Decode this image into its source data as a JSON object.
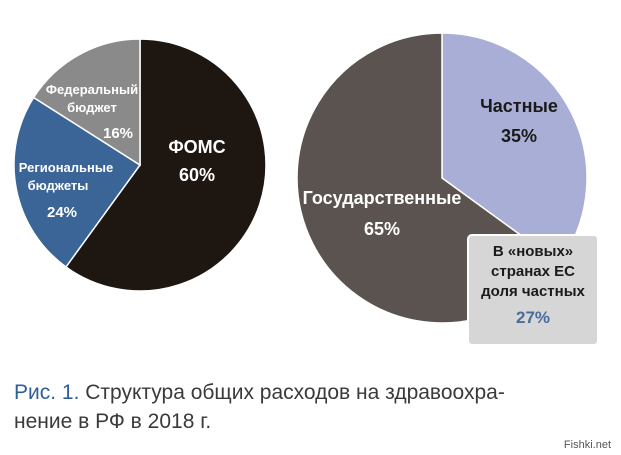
{
  "colors": {
    "foms": "#1e1611",
    "federal": "#8a8a8a",
    "regional": "#3a6596",
    "state": "#5a5350",
    "private": "#a8aed6",
    "callout_bg": "#d6d6d6",
    "callout_value": "#4a6c9c",
    "caption_accent": "#2f5f95"
  },
  "chart_data": [
    {
      "type": "pie",
      "slices": [
        {
          "name": "ФОМС",
          "value": 60
        },
        {
          "name": "Федеральный бюджет",
          "value": 16
        },
        {
          "name": "Региональные бюджеты",
          "value": 24
        }
      ]
    },
    {
      "type": "pie",
      "slices": [
        {
          "name": "Частные",
          "value": 35
        },
        {
          "name": "Государственные",
          "value": 65
        }
      ]
    }
  ],
  "labels": {
    "foms_name": "ФОМС",
    "foms_pct": "60%",
    "federal_line1": "Федеральный",
    "federal_line2": "бюджет",
    "federal_pct": "16%",
    "regional_line1": "Региональные",
    "regional_line2": "бюджеты",
    "regional_pct": "24%",
    "private_name": "Частные",
    "private_pct": "35%",
    "state_name": "Государственные",
    "state_pct": "65%"
  },
  "callout": {
    "line1": "В «новых»",
    "line2": "странах ЕС",
    "line3": "доля частных",
    "value": "27%"
  },
  "caption": {
    "fig": "Рис. 1.",
    "line1": "Структура общих расходов на здравоохра-",
    "line2": "нение в РФ в 2018 г."
  },
  "watermark": "Fishki.net"
}
